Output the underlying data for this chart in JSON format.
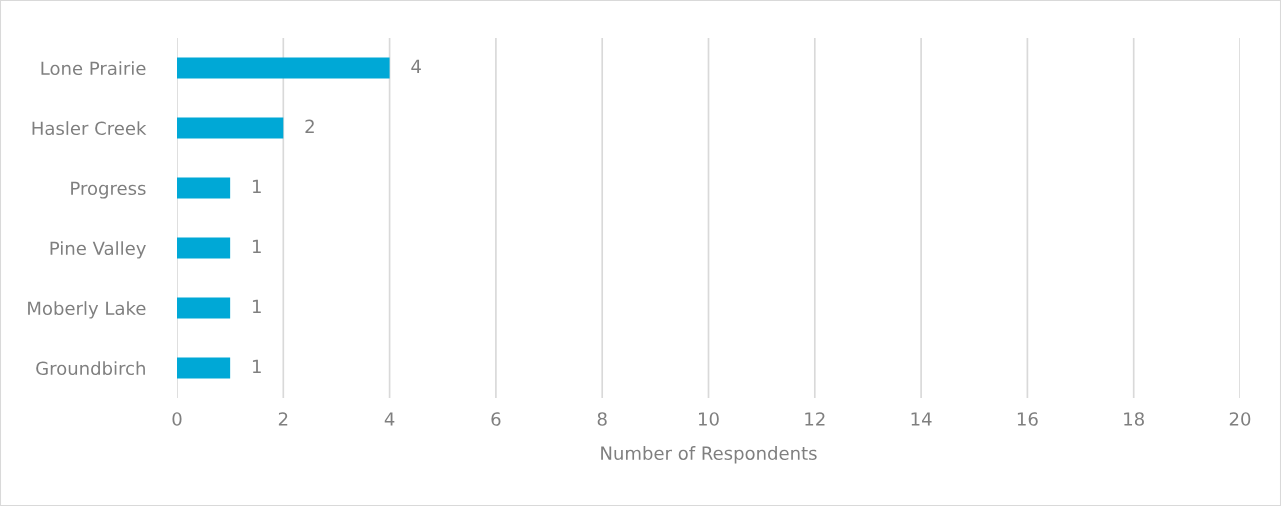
{
  "chart_data": {
    "type": "bar",
    "orientation": "horizontal",
    "xlabel": "Number of Respondents",
    "categories": [
      "Lone Prairie",
      "Hasler Creek",
      "Progress",
      "Pine Valley",
      "Moberly Lake",
      "Groundbirch"
    ],
    "values": [
      4,
      2,
      1,
      1,
      1,
      1
    ],
    "color": "#00a8d6",
    "data_labels": true,
    "xlim": [
      0,
      20
    ],
    "xticks": [
      0,
      2,
      4,
      6,
      8,
      10,
      12,
      14,
      16,
      18,
      20
    ],
    "grid": "x",
    "legend": false
  }
}
